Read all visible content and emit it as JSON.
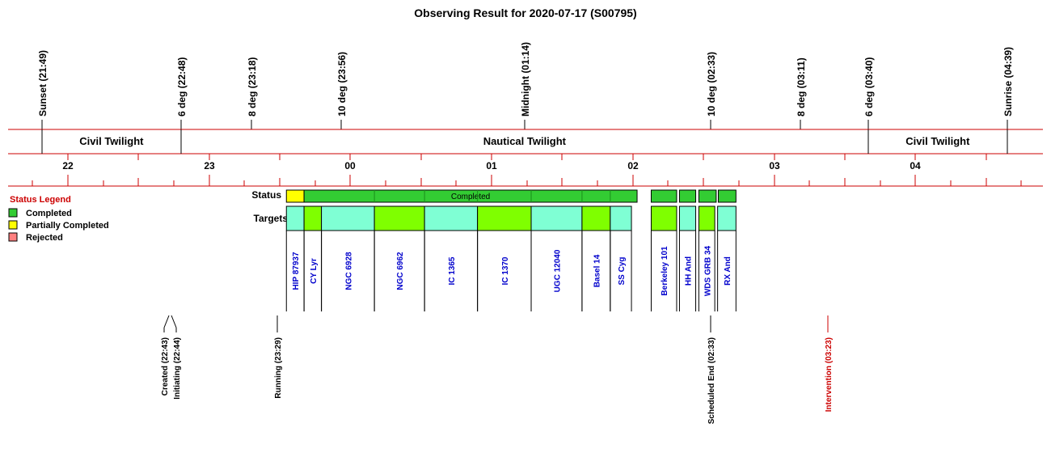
{
  "title": "Observing Result for 2020-07-17 (S00795)",
  "colors": {
    "grid_line": "#cc0000",
    "completed": "#33cc33",
    "partial": "#ffff00",
    "rejected": "#ff7f7f",
    "target_a": "#7fffd4",
    "target_b": "#7fff00",
    "target_text": "#0000cc",
    "legend_title": "#cc0000",
    "intervention": "#cc0000"
  },
  "sun_events": [
    {
      "label": "Sunset (21:49)",
      "hour": 21.8167
    },
    {
      "label": "6 deg (22:48)",
      "hour": 22.8
    },
    {
      "label": "8 deg (23:18)",
      "hour": 23.3
    },
    {
      "label": "10 deg (23:56)",
      "hour": 23.9333
    },
    {
      "label": "Midnight (01:14)",
      "hour": 25.2333
    },
    {
      "label": "10 deg (02:33)",
      "hour": 26.55
    },
    {
      "label": "8 deg (03:11)",
      "hour": 27.1833
    },
    {
      "label": "6 deg (03:40)",
      "hour": 27.6667
    },
    {
      "label": "Sunrise (04:39)",
      "hour": 28.65
    }
  ],
  "twilight_bands": [
    {
      "label": "Civil Twilight",
      "start": 21.8167,
      "end": 22.8
    },
    {
      "label": "Nautical Twilight",
      "start": 22.8,
      "end": 27.6667
    },
    {
      "label": "Civil Twilight",
      "start": 27.6667,
      "end": 28.65
    }
  ],
  "hour_ticks": [
    {
      "label": "22",
      "hour": 22
    },
    {
      "label": "23",
      "hour": 23
    },
    {
      "label": "00",
      "hour": 24
    },
    {
      "label": "01",
      "hour": 25
    },
    {
      "label": "02",
      "hour": 26
    },
    {
      "label": "03",
      "hour": 27
    },
    {
      "label": "04",
      "hour": 28
    }
  ],
  "legend": {
    "title": "Status Legend",
    "items": [
      {
        "label": "Completed",
        "color": "#33cc33"
      },
      {
        "label": "Partially Completed",
        "color": "#ffff00"
      },
      {
        "label": "Rejected",
        "color": "#ff7f7f"
      }
    ]
  },
  "row_labels": {
    "status": "Status",
    "targets": "Targets"
  },
  "status_blocks": [
    {
      "start": 23.547,
      "end": 23.672,
      "status": "partial",
      "label": ""
    },
    {
      "start": 23.672,
      "end": 26.03,
      "status": "completed",
      "label": "Completed"
    },
    {
      "start": 26.13,
      "end": 26.31,
      "status": "completed",
      "label": ""
    },
    {
      "start": 26.33,
      "end": 26.445,
      "status": "completed",
      "label": ""
    },
    {
      "start": 26.467,
      "end": 26.59,
      "status": "completed",
      "label": ""
    },
    {
      "start": 26.605,
      "end": 26.73,
      "status": "completed",
      "label": ""
    }
  ],
  "status_ticks": [
    24.17,
    24.525,
    24.9,
    25.28,
    25.64,
    25.84
  ],
  "targets": [
    {
      "name": "HIP 87937",
      "start": 23.547,
      "end": 23.672,
      "color": "#7fffd4"
    },
    {
      "name": "CY Lyr",
      "start": 23.672,
      "end": 23.795,
      "color": "#7fff00"
    },
    {
      "name": "NGC 6928",
      "start": 23.795,
      "end": 24.17,
      "color": "#7fffd4"
    },
    {
      "name": "NGC 6962",
      "start": 24.17,
      "end": 24.525,
      "color": "#7fff00"
    },
    {
      "name": "IC 1365",
      "start": 24.525,
      "end": 24.9,
      "color": "#7fffd4"
    },
    {
      "name": "IC 1370",
      "start": 24.9,
      "end": 25.28,
      "color": "#7fff00"
    },
    {
      "name": "UGC 12040",
      "start": 25.28,
      "end": 25.64,
      "color": "#7fffd4"
    },
    {
      "name": "Basel 14",
      "start": 25.64,
      "end": 25.84,
      "color": "#7fff00"
    },
    {
      "name": "SS Cyg",
      "start": 25.84,
      "end": 25.99,
      "color": "#7fffd4"
    },
    {
      "name": "Berkeley 101",
      "start": 26.13,
      "end": 26.31,
      "color": "#7fff00"
    },
    {
      "name": "HH And",
      "start": 26.33,
      "end": 26.445,
      "color": "#7fffd4"
    },
    {
      "name": "WDS GRB 34",
      "start": 26.467,
      "end": 26.58,
      "color": "#7fff00"
    },
    {
      "name": "RX And",
      "start": 26.6,
      "end": 26.73,
      "color": "#7fffd4"
    }
  ],
  "events": [
    {
      "label": "Created (22:43)",
      "hour": 22.7167,
      "color": "#000000"
    },
    {
      "label": "Initiating (22:44)",
      "hour": 22.7333,
      "color": "#000000"
    },
    {
      "label": "Running (23:29)",
      "hour": 23.4833,
      "color": "#000000"
    },
    {
      "label": "Scheduled End (02:33)",
      "hour": 26.55,
      "color": "#000000"
    },
    {
      "label": "Intervention (03:23)",
      "hour": 27.3833,
      "color": "#cc0000"
    }
  ]
}
